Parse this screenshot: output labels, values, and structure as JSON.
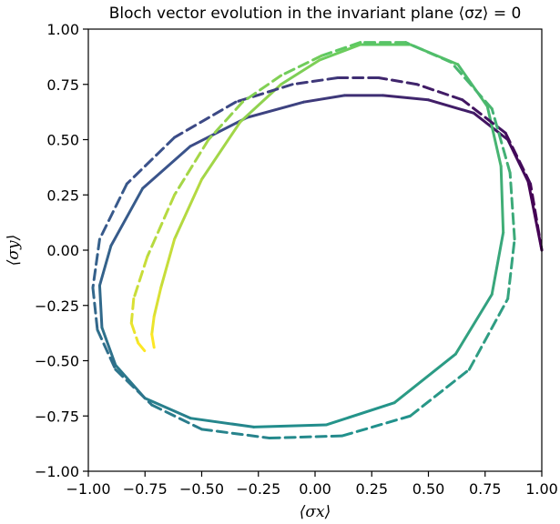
{
  "chart_data": {
    "type": "line",
    "title": "Bloch vector evolution in the invariant plane ⟨σz⟩ = 0",
    "xlabel": "⟨σx⟩",
    "ylabel": "⟨σy⟩",
    "xlim": [
      -1.0,
      1.0
    ],
    "ylim": [
      -1.0,
      1.0
    ],
    "x_ticks": [
      "−1.00",
      "−0.75",
      "−0.50",
      "−0.25",
      "0.00",
      "0.25",
      "0.50",
      "0.75",
      "1.00"
    ],
    "y_ticks": [
      "1.00",
      "0.75",
      "0.50",
      "0.25",
      "0.00",
      "−0.25",
      "−0.50",
      "−0.75",
      "−1.00"
    ],
    "grid": false,
    "colormap": [
      "#440154",
      "#3b528b",
      "#21918c",
      "#5ec962",
      "#fde725"
    ],
    "series": [
      {
        "style": "solid",
        "x": [
          1.0,
          0.94,
          0.85,
          0.7,
          0.5,
          0.3,
          0.13,
          -0.05,
          -0.3,
          -0.55,
          -0.76,
          -0.9,
          -0.95,
          -0.94,
          -0.88,
          -0.75,
          -0.55,
          -0.27,
          0.05,
          0.35,
          0.62,
          0.78,
          0.83,
          0.82,
          0.76,
          0.63,
          0.42,
          0.2,
          0.02,
          -0.15,
          -0.33,
          -0.5,
          -0.62,
          -0.68,
          -0.71,
          -0.72,
          -0.71
        ],
        "y": [
          0.0,
          0.31,
          0.5,
          0.62,
          0.68,
          0.7,
          0.7,
          0.67,
          0.6,
          0.47,
          0.28,
          0.02,
          -0.16,
          -0.35,
          -0.52,
          -0.67,
          -0.76,
          -0.8,
          -0.79,
          -0.69,
          -0.47,
          -0.2,
          0.08,
          0.38,
          0.65,
          0.84,
          0.93,
          0.93,
          0.86,
          0.75,
          0.58,
          0.32,
          0.05,
          -0.17,
          -0.3,
          -0.38,
          -0.44
        ]
      },
      {
        "style": "dashed",
        "x": [
          1.0,
          0.95,
          0.84,
          0.65,
          0.45,
          0.28,
          0.1,
          -0.1,
          -0.35,
          -0.62,
          -0.83,
          -0.95,
          -0.98,
          -0.96,
          -0.88,
          -0.72,
          -0.5,
          -0.2,
          0.12,
          0.42,
          0.68,
          0.85,
          0.88,
          0.86,
          0.78,
          0.6,
          0.4,
          0.2,
          0.03,
          -0.15,
          -0.32,
          -0.47,
          -0.62,
          -0.74,
          -0.8,
          -0.81,
          -0.78,
          -0.74
        ],
        "y": [
          0.0,
          0.3,
          0.53,
          0.68,
          0.75,
          0.78,
          0.78,
          0.75,
          0.67,
          0.51,
          0.3,
          0.05,
          -0.17,
          -0.36,
          -0.54,
          -0.7,
          -0.81,
          -0.85,
          -0.84,
          -0.75,
          -0.54,
          -0.22,
          0.05,
          0.35,
          0.64,
          0.85,
          0.94,
          0.94,
          0.88,
          0.79,
          0.67,
          0.5,
          0.25,
          -0.03,
          -0.22,
          -0.33,
          -0.42,
          -0.47
        ]
      }
    ]
  }
}
